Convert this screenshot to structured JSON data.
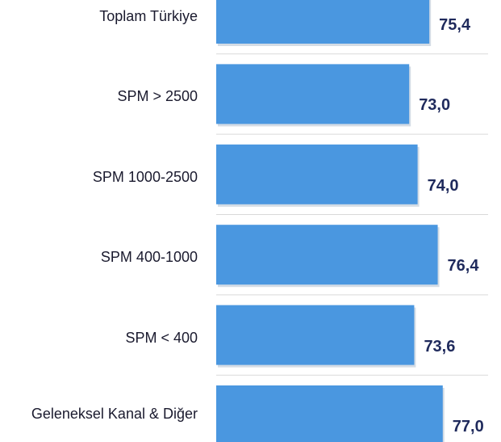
{
  "chart_data": {
    "type": "bar",
    "orientation": "horizontal",
    "categories": [
      "Toplam Türkiye",
      "SPM > 2500",
      "SPM 1000-2500",
      "SPM 400-1000",
      "SPM < 400",
      "Geleneksel Kanal & Diğer"
    ],
    "values": [
      75.4,
      73.0,
      74.0,
      76.4,
      73.6,
      77.0
    ],
    "value_labels": [
      "75,4",
      "73,0",
      "74,0",
      "76,4",
      "73,6",
      "77,0"
    ],
    "color": "#4a97e0",
    "xlim": [
      50,
      80
    ]
  }
}
